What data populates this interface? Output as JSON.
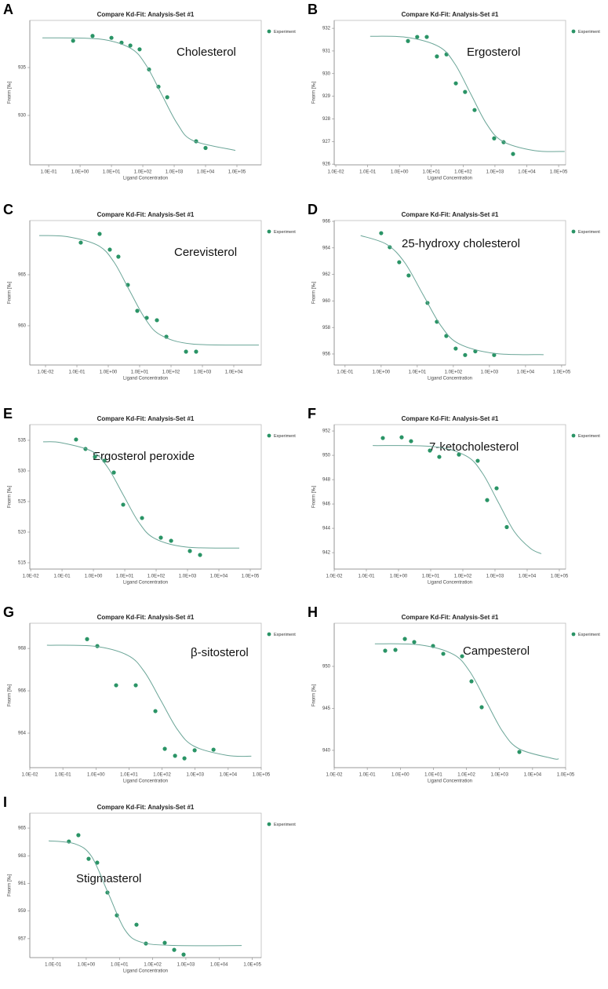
{
  "chart_data": [
    {
      "type": "scatter",
      "panel": "A",
      "title": "Compare Kd-Fit: Analysis-Set #1",
      "annotation": "Cholesterol",
      "xlabel": "Ligand Concentration",
      "ylabel": "Fnorm [‰]",
      "xscale": "log",
      "xlim": [
        0.025,
        596000
      ],
      "ylim": [
        924.84,
        939.92
      ],
      "xticks": [
        {
          "value": 0.1,
          "label": "1.0E-01"
        },
        {
          "value": 1,
          "label": "1.0E+00"
        },
        {
          "value": 10,
          "label": "1.0E+01"
        },
        {
          "value": 100,
          "label": "1.0E+02"
        },
        {
          "value": 1000,
          "label": "1.0E+03"
        },
        {
          "value": 10000,
          "label": "1.0E+04"
        },
        {
          "value": 100000,
          "label": "1.0E+05"
        }
      ],
      "yticks": [
        930,
        935
      ],
      "series": [
        {
          "name": "Experiment",
          "color": "#2a9466",
          "x": [
            0.6,
            2.5,
            10,
            21,
            40,
            79,
            158,
            316,
            600,
            5000,
            10000
          ],
          "values": [
            937.8,
            938.3,
            938.1,
            937.6,
            937.3,
            936.9,
            934.8,
            933.0,
            931.9,
            927.3,
            926.6
          ]
        },
        {
          "color": "#6aa597",
          "x": [
            0.063,
            4.0,
            40,
            126,
            398,
            1259,
            3981,
            89125
          ],
          "values": [
            938.1,
            937.98,
            937.03,
            935.27,
            932.2,
            929.13,
            927.37,
            926.35
          ]
        }
      ]
    },
    {
      "type": "scatter",
      "panel": "B",
      "title": "Compare Kd-Fit: Analysis-Set #1",
      "annotation": "Ergosterol",
      "xlabel": "Ligand Concentration",
      "ylabel": "Fnorm [‰]",
      "xscale": "log",
      "xlim": [
        0.0089,
        166000
      ],
      "ylim": [
        925.97,
        932.35
      ],
      "xticks": [
        {
          "value": 0.01,
          "label": "1.0E-02"
        },
        {
          "value": 0.1,
          "label": "1.0E-01"
        },
        {
          "value": 1,
          "label": "1.0E+00"
        },
        {
          "value": 10,
          "label": "1.0E+01"
        },
        {
          "value": 100,
          "label": "1.0E+02"
        },
        {
          "value": 1000,
          "label": "1.0E+03"
        },
        {
          "value": 10000,
          "label": "1.0E+04"
        },
        {
          "value": 100000,
          "label": "1.0E+05"
        }
      ],
      "yticks": [
        926,
        927,
        928,
        929,
        930,
        931,
        932
      ],
      "series": [
        {
          "name": "Experiment",
          "color": "#2a9466",
          "x": [
            1.85,
            3.6,
            7.2,
            15,
            30,
            59,
            115,
            229,
            944,
            1870,
            3700
          ],
          "values": [
            931.44,
            931.62,
            931.62,
            930.76,
            930.85,
            929.57,
            929.19,
            928.39,
            927.14,
            926.97,
            926.45
          ]
        },
        {
          "color": "#6aa597",
          "x": [
            0.12,
            1.74,
            17.4,
            55,
            174,
            550,
            1740,
            17400,
            155000
          ],
          "values": [
            931.65,
            931.6,
            931.19,
            930.43,
            929.1,
            927.77,
            927.01,
            926.6,
            926.56
          ]
        }
      ]
    },
    {
      "type": "scatter",
      "panel": "C",
      "title": "Compare Kd-Fit: Analysis-Set #1",
      "annotation": "Cerevisterol",
      "xlabel": "Ligand Concentration",
      "ylabel": "Fnorm [‰]",
      "xscale": "log",
      "xlim": [
        0.00316,
        75000
      ],
      "ylim": [
        956.15,
        970.31
      ],
      "xticks": [
        {
          "value": 0.01,
          "label": "1.0E-02"
        },
        {
          "value": 0.1,
          "label": "1.0E-01"
        },
        {
          "value": 1,
          "label": "1.0E+00"
        },
        {
          "value": 10,
          "label": "1.0E+01"
        },
        {
          "value": 100,
          "label": "1.0E+02"
        },
        {
          "value": 1000,
          "label": "1.0E+03"
        },
        {
          "value": 10000,
          "label": "1.0E+04"
        }
      ],
      "yticks": [
        960,
        965
      ],
      "series": [
        {
          "name": "Experiment",
          "color": "#2a9466",
          "x": [
            0.133,
            0.53,
            1.12,
            2.1,
            4.2,
            8.4,
            16.8,
            35.5,
            71,
            300,
            630
          ],
          "values": [
            968.15,
            969.0,
            967.46,
            966.77,
            964.0,
            961.46,
            960.77,
            960.54,
            958.92,
            957.46,
            957.46
          ]
        },
        {
          "color": "#6aa597",
          "x": [
            0.0063,
            0.047,
            0.47,
            1.5,
            4.7,
            15,
            47,
            473,
            63000
          ],
          "values": [
            968.84,
            968.74,
            967.87,
            966.27,
            963.48,
            960.68,
            959.08,
            958.21,
            958.1
          ]
        }
      ]
    },
    {
      "type": "scatter",
      "panel": "D",
      "title": "Compare Kd-Fit: Analysis-Set #1",
      "annotation": "25-hydroxy cholesterol",
      "xlabel": "Ligand Concentration",
      "ylabel": "Fnorm [‰]",
      "xscale": "log",
      "xlim": [
        0.05,
        129000
      ],
      "ylim": [
        955.17,
        966.06
      ],
      "xticks": [
        {
          "value": 0.1,
          "label": "1.0E-01"
        },
        {
          "value": 1,
          "label": "1.0E+00"
        },
        {
          "value": 10,
          "label": "1.0E+01"
        },
        {
          "value": 100,
          "label": "1.0E+02"
        },
        {
          "value": 1000,
          "label": "1.0E+03"
        },
        {
          "value": 10000,
          "label": "1.0E+04"
        },
        {
          "value": 100000,
          "label": "1.0E+05"
        }
      ],
      "yticks": [
        956,
        958,
        960,
        962,
        964,
        966
      ],
      "series": [
        {
          "name": "Experiment",
          "color": "#2a9466",
          "x": [
            1.0,
            1.73,
            3.16,
            5.77,
            19.2,
            34.9,
            63.7,
            116,
            212,
            406,
            1349
          ],
          "values": [
            965.11,
            964.05,
            962.92,
            961.92,
            959.85,
            958.43,
            957.36,
            956.41,
            955.92,
            956.2,
            955.92
          ]
        },
        {
          "color": "#6aa597",
          "x": [
            0.27,
            1.41,
            4.47,
            14.1,
            44.7,
            141,
            1413,
            31600
          ],
          "values": [
            964.93,
            964.27,
            962.9,
            960.53,
            958.15,
            956.78,
            956.04,
            955.95
          ]
        }
      ]
    },
    {
      "type": "scatter",
      "panel": "E",
      "title": "Compare Kd-Fit: Analysis-Set #1",
      "annotation": "Ergosterol peroxide",
      "xlabel": "Ligand Concentration",
      "ylabel": "Fnorm [‰]",
      "xscale": "log",
      "xlim": [
        0.0094,
        224000
      ],
      "ylim": [
        513.97,
        537.56
      ],
      "xticks": [
        {
          "value": 0.01,
          "label": "1.0E-02"
        },
        {
          "value": 0.1,
          "label": "1.0E-01"
        },
        {
          "value": 1,
          "label": "1.0E+00"
        },
        {
          "value": 10,
          "label": "1.0E+01"
        },
        {
          "value": 100,
          "label": "1.0E+02"
        },
        {
          "value": 1000,
          "label": "1.0E+03"
        },
        {
          "value": 10000,
          "label": "1.0E+04"
        },
        {
          "value": 100000,
          "label": "1.0E+05"
        }
      ],
      "yticks": [
        515,
        520,
        525,
        530,
        535
      ],
      "series": [
        {
          "name": "Experiment",
          "color": "#2a9466",
          "x": [
            0.28,
            0.56,
            1.12,
            2.24,
            4.47,
            8.9,
            35.5,
            141,
            300,
            1190,
            2510
          ],
          "values": [
            535.13,
            533.59,
            532.31,
            531.67,
            529.74,
            524.49,
            522.31,
            519.1,
            518.59,
            516.92,
            516.28
          ]
        },
        {
          "color": "#6aa597",
          "x": [
            0.025,
            0.089,
            0.89,
            2.82,
            8.9,
            28.2,
            89,
            891,
            44700
          ],
          "values": [
            534.75,
            534.63,
            533.22,
            530.62,
            526.1,
            521.58,
            518.98,
            517.57,
            517.4
          ]
        }
      ]
    },
    {
      "type": "scatter",
      "panel": "F",
      "title": "Compare Kd-Fit: Analysis-Set #1",
      "annotation": "7-ketocholesterol",
      "xlabel": "Ligand Concentration",
      "ylabel": "Fnorm [‰]",
      "xscale": "log",
      "xlim": [
        0.01,
        157000
      ],
      "ylim": [
        940.65,
        952.52
      ],
      "xticks": [
        {
          "value": 0.01,
          "label": "1.0E-02"
        },
        {
          "value": 0.1,
          "label": "1.0E-01"
        },
        {
          "value": 1,
          "label": "1.0E+00"
        },
        {
          "value": 10,
          "label": "1.0E+01"
        },
        {
          "value": 100,
          "label": "1.0E+02"
        },
        {
          "value": 1000,
          "label": "1.0E+03"
        },
        {
          "value": 10000,
          "label": "1.0E+04"
        },
        {
          "value": 100000,
          "label": "1.0E+05"
        }
      ],
      "yticks": [
        942,
        944,
        946,
        948,
        950,
        952
      ],
      "series": [
        {
          "name": "Experiment",
          "color": "#2a9466",
          "x": [
            0.325,
            1.25,
            2.45,
            9.46,
            18.5,
            75.5,
            290,
            570,
            1120,
            2320
          ],
          "values": [
            951.42,
            951.48,
            951.16,
            950.39,
            949.87,
            950.06,
            949.55,
            946.32,
            947.29,
            944.1
          ]
        },
        {
          "color": "#6aa597",
          "x": [
            0.158,
            12.6,
            126,
            398,
            1259,
            3981,
            12600,
            27500
          ],
          "values": [
            950.8,
            950.71,
            949.95,
            948.57,
            946.15,
            943.73,
            942.35,
            941.91
          ]
        }
      ]
    },
    {
      "type": "scatter",
      "panel": "G",
      "title": "Compare Kd-Fit: Analysis-Set #1",
      "annotation": "β-sitosterol",
      "xlabel": "Ligand Concentration",
      "ylabel": "Fnorm [‰]",
      "xscale": "log",
      "xlim": [
        0.01,
        100000
      ],
      "ylim": [
        962.37,
        969.19
      ],
      "xticks": [
        {
          "value": 0.01,
          "label": "1.0E-02"
        },
        {
          "value": 0.1,
          "label": "1.0E-01"
        },
        {
          "value": 1,
          "label": "1.0E+00"
        },
        {
          "value": 10,
          "label": "1.0E+01"
        },
        {
          "value": 100,
          "label": "1.0E+02"
        },
        {
          "value": 1000,
          "label": "1.0E+03"
        },
        {
          "value": 10000,
          "label": "1.0E+04"
        },
        {
          "value": 100000,
          "label": "1.0E+05"
        }
      ],
      "yticks": [
        964,
        966,
        968
      ],
      "series": [
        {
          "name": "Experiment",
          "color": "#2a9466",
          "x": [
            0.54,
            1.1,
            4.08,
            16,
            62.8,
            121,
            247,
            475,
            968,
            3600
          ],
          "values": [
            968.44,
            968.11,
            966.26,
            966.26,
            965.04,
            963.26,
            962.93,
            962.81,
            963.19,
            963.22
          ]
        },
        {
          "color": "#6aa597",
          "x": [
            0.033,
            0.93,
            9.3,
            29.5,
            93,
            295,
            933,
            9330,
            50100
          ],
          "values": [
            968.15,
            968.1,
            967.67,
            966.89,
            965.53,
            964.16,
            963.38,
            962.95,
            962.91
          ]
        }
      ]
    },
    {
      "type": "scatter",
      "panel": "H",
      "title": "Compare Kd-Fit: Analysis-Set #1",
      "annotation": "Campesterol",
      "xlabel": "Ligand Concentration",
      "ylabel": "Fnorm [‰]",
      "xscale": "log",
      "xlim": [
        0.01,
        100000
      ],
      "ylim": [
        937.94,
        955.14
      ],
      "xticks": [
        {
          "value": 0.01,
          "label": "1.0E-02"
        },
        {
          "value": 0.1,
          "label": "1.0E-01"
        },
        {
          "value": 1,
          "label": "1.0E+00"
        },
        {
          "value": 10,
          "label": "1.0E+01"
        },
        {
          "value": 100,
          "label": "1.0E+02"
        },
        {
          "value": 1000,
          "label": "1.0E+03"
        },
        {
          "value": 10000,
          "label": "1.0E+04"
        },
        {
          "value": 100000,
          "label": "1.0E+05"
        }
      ],
      "yticks": [
        940,
        945,
        950
      ],
      "series": [
        {
          "name": "Experiment",
          "color": "#2a9466",
          "x": [
            0.348,
            0.71,
            1.37,
            2.63,
            9.77,
            19.9,
            73.8,
            142,
            289,
            3980
          ],
          "values": [
            951.87,
            951.96,
            953.27,
            952.9,
            952.43,
            951.5,
            951.21,
            948.22,
            945.14,
            939.81
          ]
        },
        {
          "color": "#6aa597",
          "x": [
            0.17,
            3.98,
            39.8,
            126,
            398,
            1259,
            3981,
            39800,
            61700
          ],
          "values": [
            952.69,
            952.56,
            951.44,
            949.39,
            945.8,
            942.21,
            940.16,
            939.04,
            938.99
          ]
        }
      ]
    },
    {
      "type": "scatter",
      "panel": "I",
      "title": "Compare Kd-Fit: Analysis-Set #1",
      "annotation": "Stigmasterol",
      "xlabel": "Ligand Concentration",
      "ylabel": "Fnorm [‰]",
      "xscale": "log",
      "xlim": [
        0.02,
        186000
      ],
      "ylim": [
        955.63,
        966.08
      ],
      "xticks": [
        {
          "value": 0.1,
          "label": "1.0E-01"
        },
        {
          "value": 1,
          "label": "1.0E+00"
        },
        {
          "value": 10,
          "label": "1.0E+01"
        },
        {
          "value": 100,
          "label": "1.0E+02"
        },
        {
          "value": 1000,
          "label": "1.0E+03"
        },
        {
          "value": 10000,
          "label": "1.0E+04"
        },
        {
          "value": 100000,
          "label": "1.0E+05"
        }
      ],
      "yticks": [
        957,
        959,
        961,
        963,
        965
      ],
      "series": [
        {
          "name": "Experiment",
          "color": "#2a9466",
          "x": [
            0.3,
            0.58,
            1.18,
            2.14,
            4.35,
            8.36,
            32.6,
            62.6,
            231,
            445,
            854
          ],
          "values": [
            964.03,
            964.49,
            962.78,
            962.5,
            960.34,
            958.69,
            958.01,
            956.65,
            956.7,
            956.19,
            955.85
          ]
        },
        {
          "color": "#6aa597",
          "x": [
            0.074,
            0.457,
            1.45,
            4.57,
            14.5,
            45.7,
            457,
            47900
          ],
          "values": [
            964.08,
            963.86,
            962.95,
            960.3,
            957.65,
            956.74,
            956.51,
            956.5
          ]
        }
      ]
    }
  ]
}
